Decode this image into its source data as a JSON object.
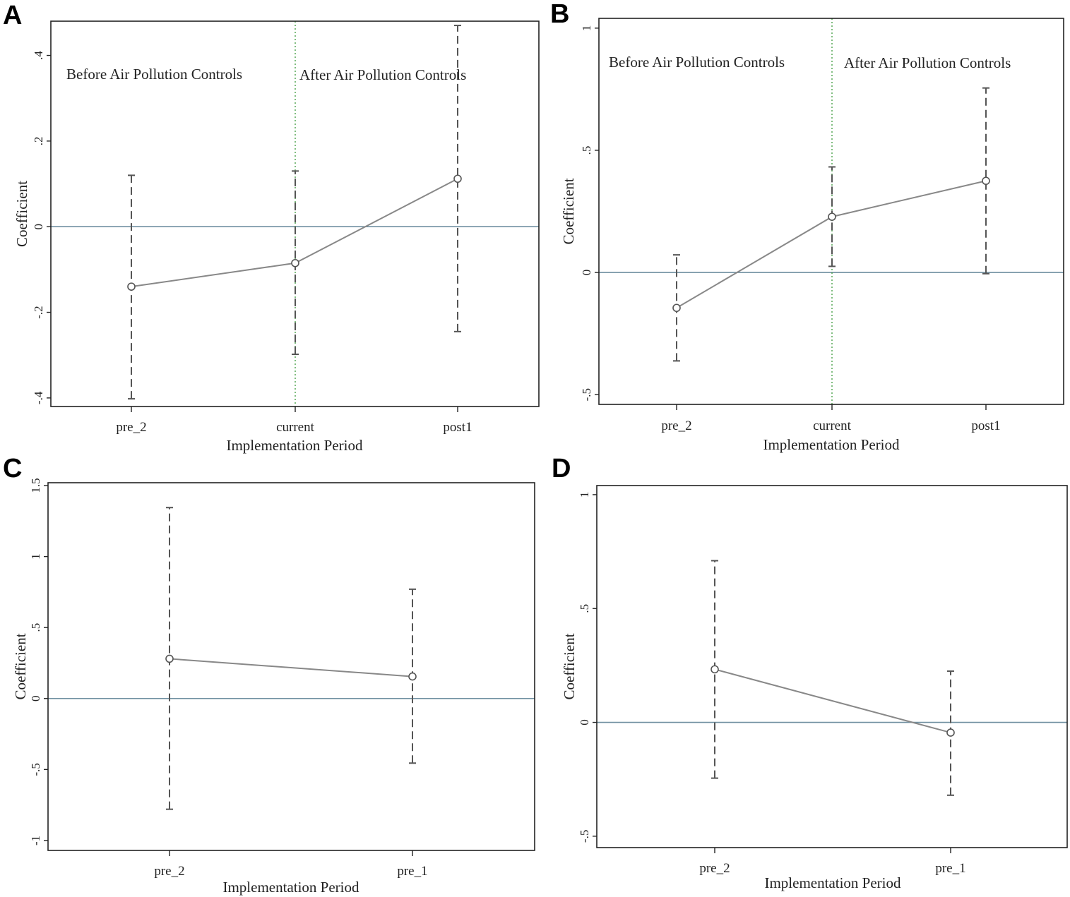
{
  "chart_data": [
    {
      "panel": "A",
      "type": "line",
      "xlabel": "Implementation Period",
      "ylabel": "Coefficient",
      "categories": [
        "pre_2",
        "current",
        "post1"
      ],
      "yticks": [
        -0.4,
        -0.2,
        0,
        0.2,
        0.4
      ],
      "ytick_labels": [
        "-.4",
        "-.2",
        "0",
        ".2",
        ".4"
      ],
      "ylim": [
        -0.42,
        0.48
      ],
      "series": [
        {
          "values": [
            -0.14,
            -0.085,
            0.112
          ],
          "ci_low": [
            -0.402,
            -0.298,
            -0.245
          ],
          "ci_high": [
            0.12,
            0.13,
            0.47
          ]
        }
      ],
      "reference_line": 0,
      "event_line": "current",
      "annotations": [
        "Before Air Pollution Controls",
        "After Air Pollution Controls"
      ]
    },
    {
      "panel": "B",
      "type": "line",
      "xlabel": "Implementation Period",
      "ylabel": "Coefficient",
      "categories": [
        "pre_2",
        "current",
        "post1"
      ],
      "yticks": [
        -0.5,
        0,
        0.5,
        1
      ],
      "ytick_labels": [
        "-.5",
        "0",
        ".5",
        "1"
      ],
      "ylim": [
        -0.54,
        1.04
      ],
      "series": [
        {
          "values": [
            -0.145,
            0.228,
            0.375
          ],
          "ci_low": [
            -0.362,
            0.025,
            -0.005
          ],
          "ci_high": [
            0.072,
            0.432,
            0.755
          ]
        }
      ],
      "reference_line": 0,
      "event_line": "current",
      "annotations": [
        "Before Air Pollution Controls",
        "After Air Pollution Controls"
      ]
    },
    {
      "panel": "C",
      "type": "line",
      "xlabel": "Implementation Period",
      "ylabel": "Coefficient",
      "categories": [
        "pre_2",
        "pre_1"
      ],
      "yticks": [
        -1,
        -0.5,
        0,
        0.5,
        1,
        1.5
      ],
      "ytick_labels": [
        "-1",
        "-.5",
        "0",
        ".5",
        "1",
        "1.5"
      ],
      "ylim": [
        -1.07,
        1.52
      ],
      "series": [
        {
          "values": [
            0.28,
            0.155
          ],
          "ci_low": [
            -0.78,
            -0.455
          ],
          "ci_high": [
            1.345,
            0.77
          ]
        }
      ],
      "reference_line": 0
    },
    {
      "panel": "D",
      "type": "line",
      "xlabel": "Implementation Period",
      "ylabel": "Coefficient",
      "categories": [
        "pre_2",
        "pre_1"
      ],
      "yticks": [
        -0.5,
        0,
        0.5,
        1
      ],
      "ytick_labels": [
        "-.5",
        "0",
        ".5",
        "1"
      ],
      "ylim": [
        -0.55,
        1.04
      ],
      "series": [
        {
          "values": [
            0.233,
            -0.045
          ],
          "ci_low": [
            -0.245,
            -0.32
          ],
          "ci_high": [
            0.71,
            0.225
          ]
        }
      ],
      "reference_line": 0
    }
  ]
}
